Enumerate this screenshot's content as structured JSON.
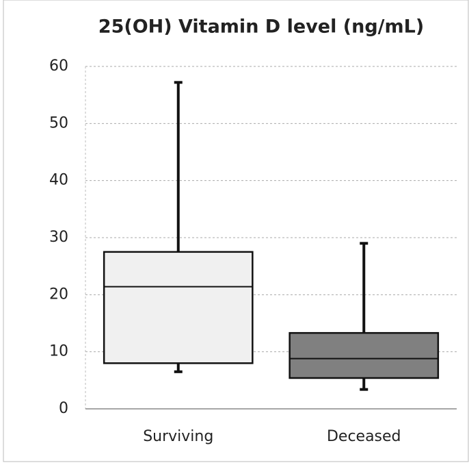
{
  "chart_data": {
    "type": "box",
    "title": "25(OH) Vitamin D level (ng/mL)",
    "categories": [
      "Surviving",
      "Deceased"
    ],
    "whisker_low": [
      6.5,
      3.4
    ],
    "q1": [
      8,
      5.4
    ],
    "median": [
      21.4,
      8.8
    ],
    "q3": [
      27.5,
      13.3
    ],
    "whisker_high": [
      57.2,
      29
    ],
    "colors": [
      "#f0f0f0",
      "#808080"
    ],
    "ylim": [
      0,
      60
    ],
    "yticks": [
      0,
      10,
      20,
      30,
      40,
      50,
      60
    ],
    "grid": true
  }
}
